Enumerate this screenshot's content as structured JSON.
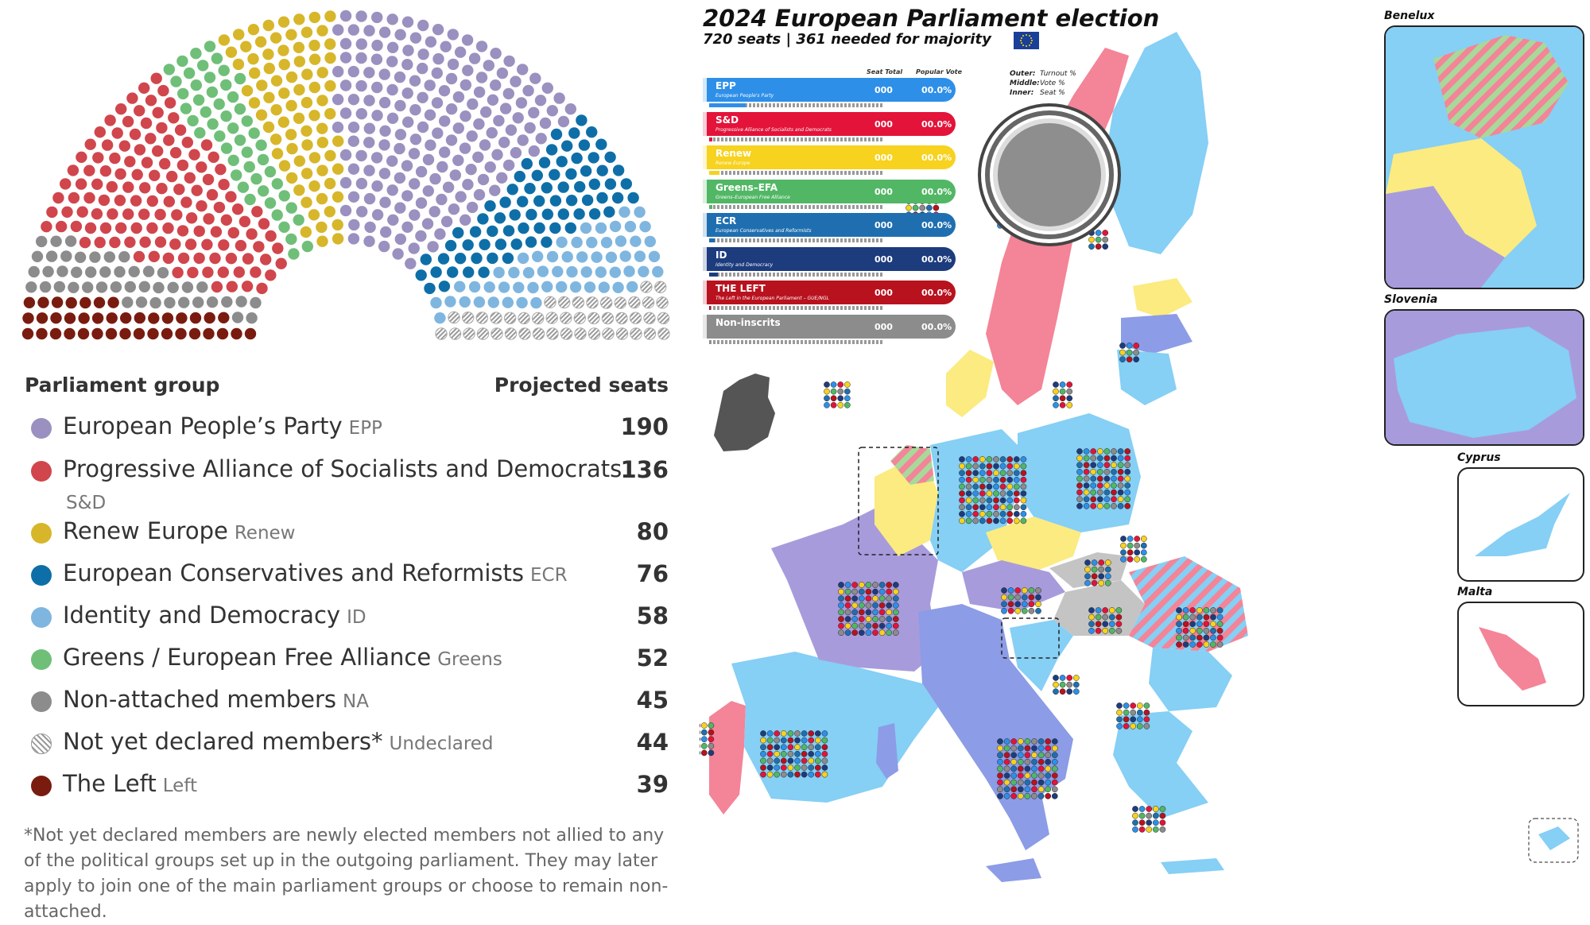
{
  "seats_chart": {
    "chart_data": {
      "type": "hemicycle",
      "order": [
        "The Left",
        "Non-attached members",
        "Progressive Alliance of Socialists and Democrats",
        "Greens / European Free Alliance",
        "Renew Europe",
        "European People's Party",
        "European Conservatives and Reformists",
        "Identity and Democracy",
        "Not yet declared members*"
      ],
      "series": [
        {
          "name": "The Left",
          "values": [
            39
          ]
        },
        {
          "name": "Non-attached members",
          "values": [
            45
          ]
        },
        {
          "name": "Progressive Alliance of Socialists and Democrats",
          "values": [
            136
          ]
        },
        {
          "name": "Greens / European Free Alliance",
          "values": [
            52
          ]
        },
        {
          "name": "Renew Europe",
          "values": [
            80
          ]
        },
        {
          "name": "European People's Party",
          "values": [
            190
          ]
        },
        {
          "name": "European Conservatives and Reformists",
          "values": [
            76
          ]
        },
        {
          "name": "Identity and Democracy",
          "values": [
            58
          ]
        },
        {
          "name": "Not yet declared members*",
          "values": [
            44
          ]
        }
      ]
    }
  },
  "table": {
    "header_left": "Parliament group",
    "header_right": "Projected seats",
    "rows": [
      {
        "name": "European People’s Party",
        "abbr": "EPP",
        "seats": "190",
        "color": "#9a91c0"
      },
      {
        "name": "Progressive Alliance of Socialists and Democrats",
        "abbr": "S&D",
        "seats": "136",
        "color": "#d0464c"
      },
      {
        "name": "Renew Europe",
        "abbr": "Renew",
        "seats": "80",
        "color": "#d7b62a"
      },
      {
        "name": "European Conservatives and Reformists",
        "abbr": "ECR",
        "seats": "76",
        "color": "#0e6fa8"
      },
      {
        "name": "Identity and Democracy",
        "abbr": "ID",
        "seats": "58",
        "color": "#7fb6df"
      },
      {
        "name": "Greens / European Free Alliance",
        "abbr": "Greens",
        "seats": "52",
        "color": "#6fbf78"
      },
      {
        "name": "Non-attached members",
        "abbr": "NA",
        "seats": "45",
        "color": "#8c8c8c"
      },
      {
        "name": "Not yet declared members*",
        "abbr": "Undeclared",
        "seats": "44",
        "color": "hatch"
      },
      {
        "name": "The Left",
        "abbr": "Left",
        "seats": "39",
        "color": "#7a1b0f"
      }
    ],
    "footnote": "*Not yet declared members are newly elected members not allied to any of the political groups set up in the outgoing parliament. They may later apply to join one of the main parliament groups or choose to remain non-attached."
  },
  "map": {
    "title": "2024 European Parliament election",
    "subtitle": "720 seats | 361 needed for majority",
    "col_seat_total": "Seat Total",
    "col_popular_vote": "Popular Vote",
    "parties": [
      {
        "name": "EPP",
        "desc": "European People's Party",
        "seats": "000",
        "vote": "00.0%",
        "color": "#2e8fe8",
        "fill": "#2e8fe8",
        "fill_frac": 0.21
      },
      {
        "name": "S&D",
        "desc": "Progressive Alliance of Socialists and Democrats",
        "seats": "000",
        "vote": "00.0%",
        "color": "#e3133a",
        "fill": "#e3133a",
        "fill_frac": 0.02
      },
      {
        "name": "Renew",
        "desc": "Renew Europe",
        "seats": "000",
        "vote": "00.0%",
        "color": "#f7d21e",
        "fill": "#f7d21e",
        "fill_frac": 0.06
      },
      {
        "name": "Greens–EFA",
        "desc": "Greens–European Free Alliance",
        "seats": "000",
        "vote": "00.0%",
        "color": "#52b765",
        "fill": "#52b765",
        "fill_frac": 0.02
      },
      {
        "name": "ECR",
        "desc": "European Conservatives and Reformists",
        "seats": "000",
        "vote": "00.0%",
        "color": "#1f6fb0",
        "fill": "#1f6fb0",
        "fill_frac": 0.03
      },
      {
        "name": "ID",
        "desc": "Identity and Democracy",
        "seats": "000",
        "vote": "00.0%",
        "color": "#1d3c7e",
        "fill": "#1d3c7e",
        "fill_frac": 0.05
      },
      {
        "name": "THE LEFT",
        "desc": "The Left in the European Parliament – GUE/NGL",
        "seats": "000",
        "vote": "00.0%",
        "color": "#b8121e",
        "fill": "#b8121e",
        "fill_frac": 0.01
      },
      {
        "name": "Non-inscrits",
        "desc": "",
        "seats": "000",
        "vote": "00.0%",
        "color": "#8c8c8c",
        "fill": "#8c8c8c",
        "fill_frac": 0.01
      }
    ],
    "ring_legend": [
      {
        "label": "Outer:",
        "value": "Turnout %"
      },
      {
        "label": "Middle:",
        "value": "Vote %"
      },
      {
        "label": "Inner:",
        "value": "Seat %"
      }
    ],
    "insets": [
      {
        "title": "Benelux"
      },
      {
        "title": "Slovenia"
      },
      {
        "title": "Cyprus"
      },
      {
        "title": "Malta"
      }
    ],
    "colors": {
      "light_blue": "#86cff5",
      "pink": "#f48497",
      "purple": "#a89bdc",
      "periwinkle": "#8c9ce6",
      "yellow": "#fbeb80",
      "grey": "#c4c4c4",
      "dark": "#555555"
    }
  }
}
